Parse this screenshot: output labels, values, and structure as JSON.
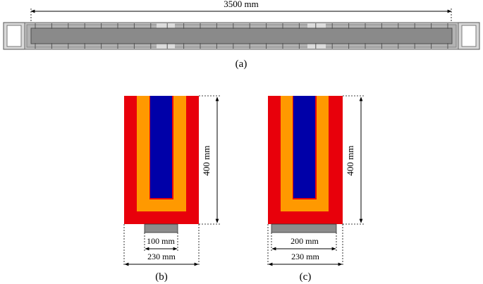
{
  "panel_a": {
    "length_label": "3500 mm",
    "caption": "(a)"
  },
  "panel_b": {
    "height_label": "400 mm",
    "plate_width_label": "100 mm",
    "section_width_label": "230 mm",
    "caption": "(b)"
  },
  "panel_c": {
    "height_label": "400 mm",
    "plate_width_label": "200 mm",
    "section_width_label": "230 mm",
    "caption": "(c)"
  },
  "colors": {
    "outer_layer": "#e8000b",
    "middle_layer": "#ff9900",
    "core": "#0000a8",
    "steel_plate": "#8c8c8c",
    "beam_body": "#8a8a8a",
    "beam_frame": "#c4c4c4"
  }
}
